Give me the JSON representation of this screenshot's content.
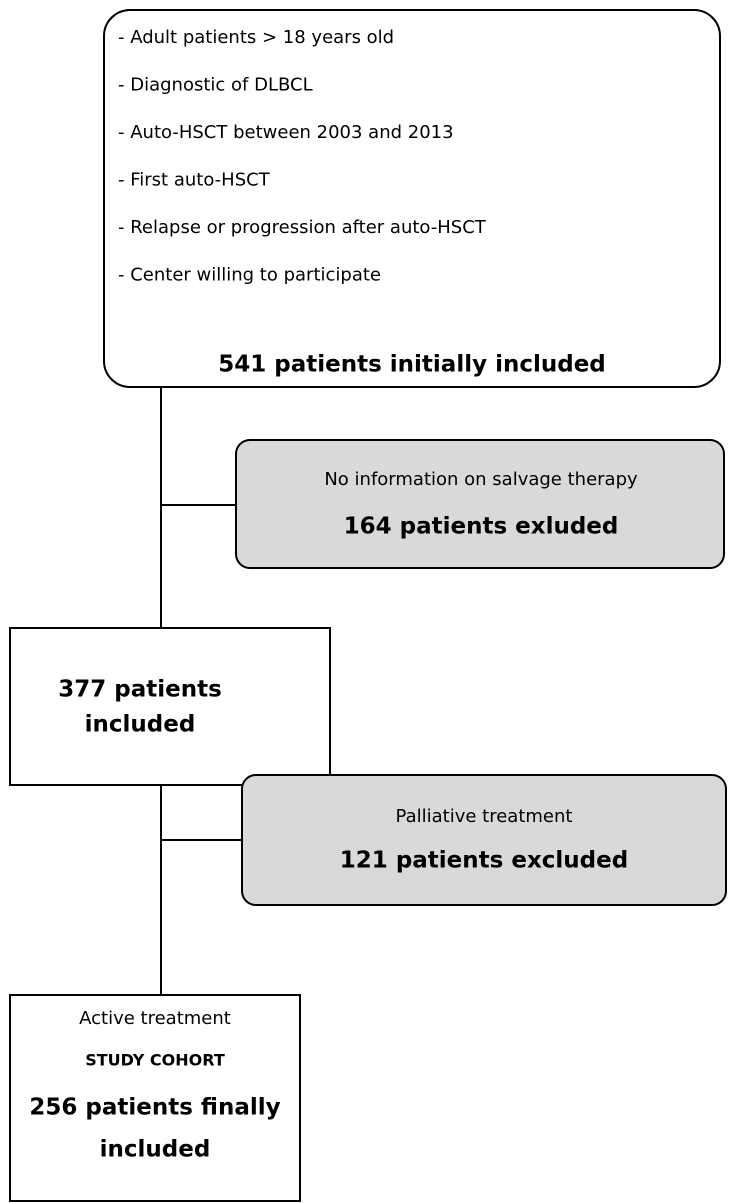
{
  "nodes": [
    {
      "criteria": [
        "- Adult patients > 18 years old",
        "- Diagnostic of DLBCL",
        "- Auto-HSCT between 2003 and 2013",
        "- First auto-HSCT",
        "- Relapse or progression after auto-HSCT",
        "- Center willing to participate"
      ],
      "result": "541 patients initially included"
    },
    {
      "reason": "No information on salvage therapy",
      "result": "164 patients exluded"
    },
    {
      "result_lines": [
        "377 patients",
        "included"
      ]
    },
    {
      "reason": "Palliative treatment",
      "result": "121 patients excluded"
    },
    {
      "reason": "Active treatment",
      "label": "STUDY COHORT",
      "result_lines": [
        "256 patients finally",
        "included"
      ]
    }
  ]
}
